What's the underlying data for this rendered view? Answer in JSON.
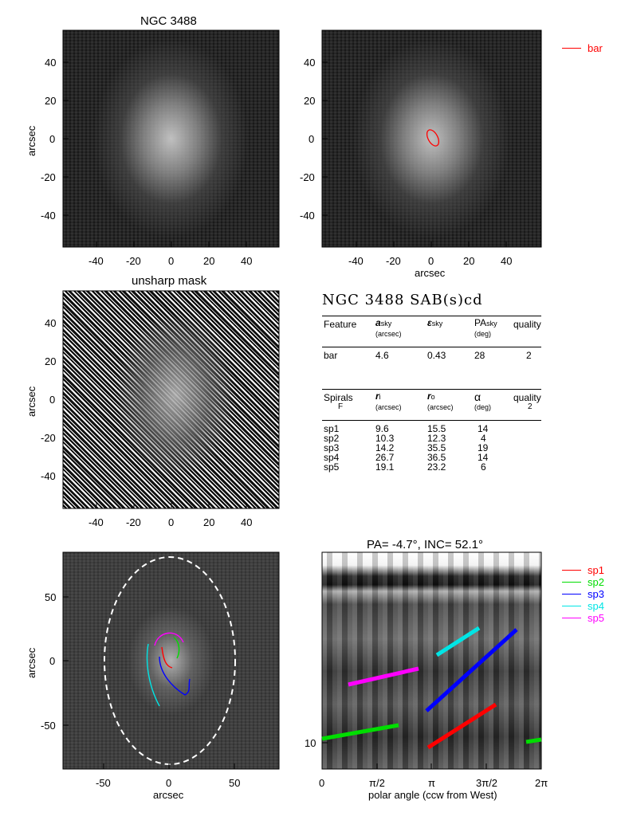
{
  "panels": {
    "top_left": {
      "title": "NGC 3488",
      "ylabel": "arcsec",
      "xticks": [
        "-40",
        "-20",
        "0",
        "20",
        "40"
      ],
      "yticks": [
        "40",
        "20",
        "0",
        "-20",
        "-40"
      ]
    },
    "top_right": {
      "xlabel": "arcsec",
      "xticks": [
        "-40",
        "-20",
        "0",
        "20",
        "40"
      ],
      "yticks": [
        "40",
        "20",
        "0",
        "-20",
        "-40"
      ],
      "legend": [
        {
          "label": "bar",
          "color": "#ff0000"
        }
      ]
    },
    "mid_left": {
      "title": "unsharp mask",
      "ylabel": "arcsec",
      "xticks": [
        "-40",
        "-20",
        "0",
        "20",
        "40"
      ],
      "yticks": [
        "40",
        "20",
        "0",
        "-20",
        "-40"
      ]
    },
    "bot_left": {
      "xlabel": "arcsec",
      "ylabel": "arcsec",
      "xticks": [
        "-50",
        "0",
        "50"
      ],
      "yticks": [
        "50",
        "0",
        "-50"
      ]
    },
    "bot_right": {
      "title": "PA=  -4.7°, INC=  52.1°",
      "xlabel": "polar angle (ccw from West)",
      "xticks": [
        "0",
        "π/2",
        "π",
        "3π/2",
        "2π"
      ],
      "yticks": [
        "10"
      ],
      "legend": [
        {
          "label": "sp1",
          "color": "#ff0000"
        },
        {
          "label": "sp2",
          "color": "#00dd00"
        },
        {
          "label": "sp3",
          "color": "#0000ff"
        },
        {
          "label": "sp4",
          "color": "#00e5e5"
        },
        {
          "label": "sp5",
          "color": "#ff00ff"
        }
      ]
    }
  },
  "table": {
    "title": "NGC 3488  SAB(s)cd",
    "bar_header": {
      "feature": "Feature",
      "a": "a",
      "a_sub": "sky",
      "a_unit": "(arcsec)",
      "eps": "ε",
      "eps_sub": "sky",
      "pa": "PA",
      "pa_sub": "sky",
      "pa_unit": "(deg)",
      "quality": "quality"
    },
    "bar_row": {
      "feature": "bar",
      "a": "4.6",
      "eps": "0.43",
      "pa": "28",
      "quality": "2"
    },
    "spiral_header": {
      "feature": "Spirals",
      "feature2": "F",
      "ri": "r",
      "ri_sub": "i",
      "ri_unit": "(arcsec)",
      "ro": "r",
      "ro_sub": "o",
      "ro_unit": "(arcsec)",
      "alpha": "α",
      "alpha_unit": "(deg)",
      "quality": "quality",
      "quality2": "2"
    },
    "spirals": [
      {
        "name": "sp1",
        "ri": "9.6",
        "ro": "15.5",
        "alpha": "14"
      },
      {
        "name": "sp2",
        "ri": "10.3",
        "ro": "12.3",
        "alpha": "4"
      },
      {
        "name": "sp3",
        "ri": "14.2",
        "ro": "35.5",
        "alpha": "19"
      },
      {
        "name": "sp4",
        "ri": "26.7",
        "ro": "36.5",
        "alpha": "14"
      },
      {
        "name": "sp5",
        "ri": "19.1",
        "ro": "23.2",
        "alpha": "6"
      }
    ]
  }
}
